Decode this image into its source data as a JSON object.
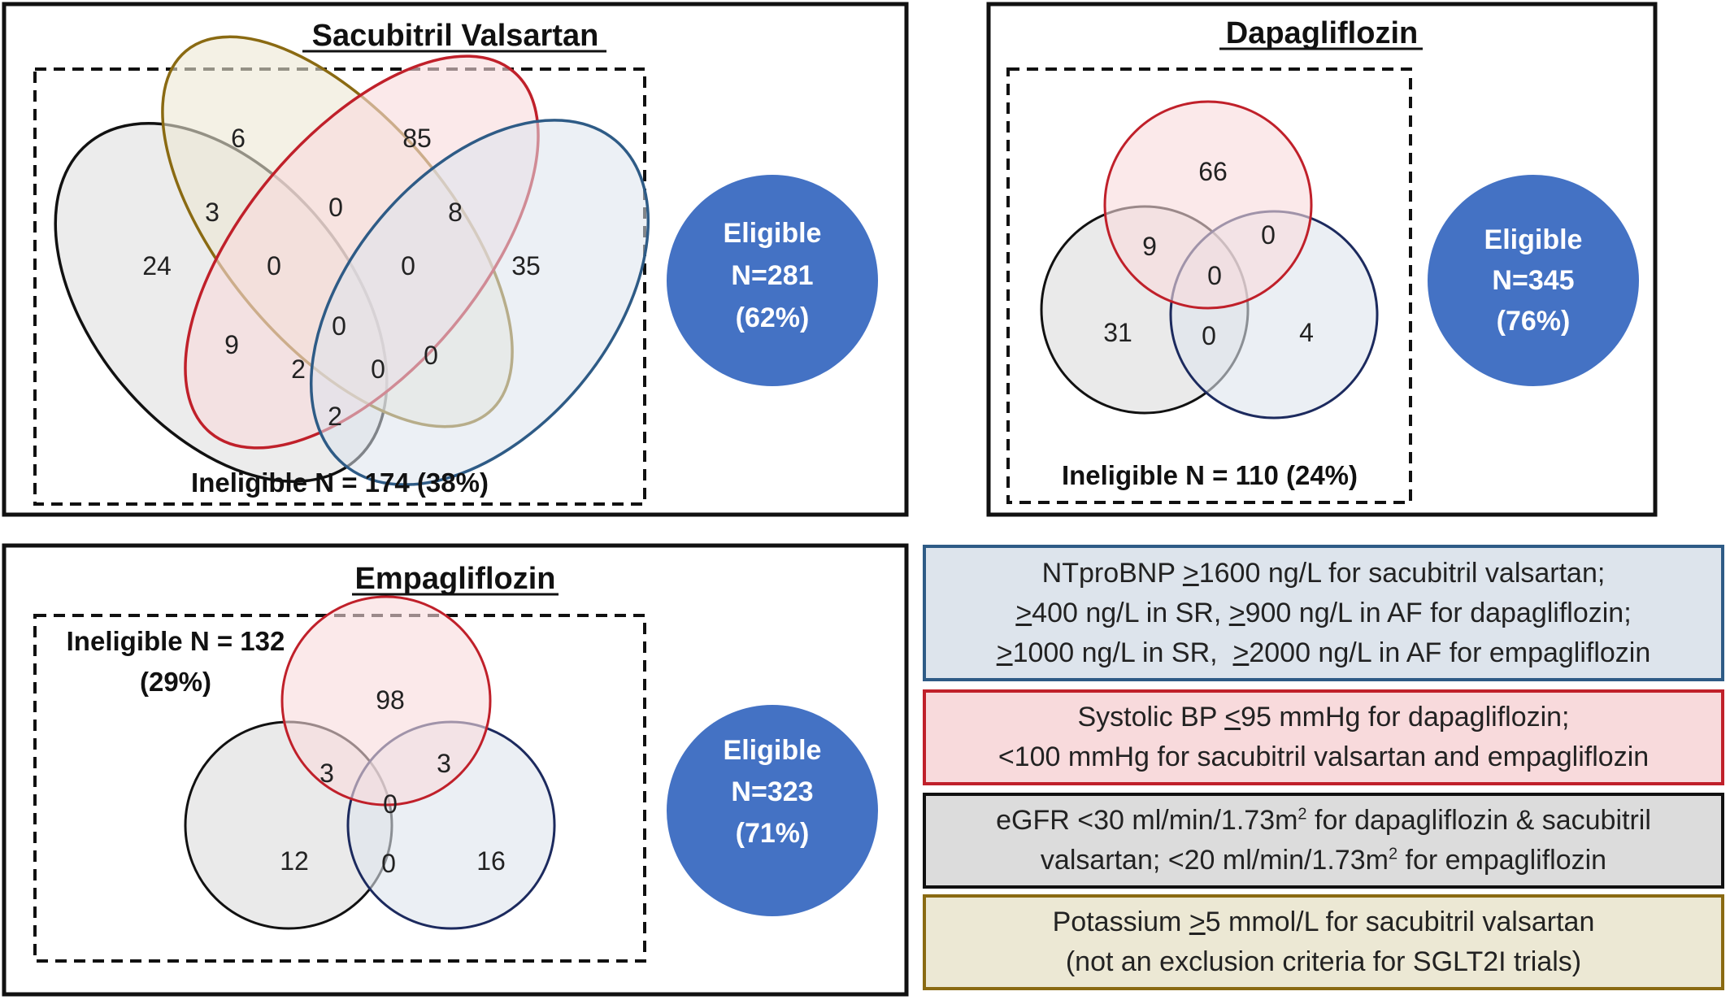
{
  "colors": {
    "blue_edge": "#2e5b86",
    "blue_fill": "#dde4ec",
    "red_edge": "#c0202a",
    "red_fill": "#f8dadc",
    "black_edge": "#111111",
    "grey_fill": "#dcdcdc",
    "olive_edge": "#8a6a12",
    "olive_fill": "#ece8d4",
    "eligible_fill": "#4472c4"
  },
  "panels": {
    "sacubitril": {
      "title": "Sacubitril Valsartan",
      "ineligible": "Ineligible N = 174 (38%)",
      "eligible": [
        "Eligible",
        "N=281",
        "(62%)"
      ],
      "regions": {
        "grey_only": "24",
        "olive_only": "6",
        "red_only": "85",
        "blue_only": "35",
        "grey_olive": "3",
        "olive_red": "0",
        "red_blue": "8",
        "grey_olive_red": "0",
        "olive_red_blue": "0",
        "center": "0",
        "grey_red": "9",
        "grey_red_blue": "2",
        "grey_olive_blue": "0",
        "olive_blue": "0",
        "grey_blue": "2"
      }
    },
    "dapagliflozin": {
      "title": "Dapagliflozin",
      "ineligible": "Ineligible N = 110 (24%)",
      "eligible": [
        "Eligible",
        "N=345",
        "(76%)"
      ],
      "regions": {
        "red_only": "66",
        "grey_red": "9",
        "red_blue": "0",
        "center": "0",
        "grey_only": "31",
        "grey_blue": "0",
        "blue_only": "4"
      }
    },
    "empagliflozin": {
      "title": "Empagliflozin",
      "ineligible_line1": "Ineligible N = 132",
      "ineligible_line2": "(29%)",
      "eligible": [
        "Eligible",
        "N=323",
        "(71%)"
      ],
      "regions": {
        "red_only": "98",
        "grey_red": "3",
        "red_blue": "3",
        "center": "0",
        "grey_only": "12",
        "grey_blue": "0",
        "blue_only": "16"
      }
    }
  },
  "legend": {
    "ntprobnp": {
      "line1_a": "NTproBNP ",
      "line1_u": ">",
      "line1_b": "1600 ng/L for sacubitril valsartan;",
      "line2_u1": ">",
      "line2_a": "400 ng/L in SR, ",
      "line2_u2": ">",
      "line2_b": "900 ng/L in AF for dapagliflozin;",
      "line3_u1": ">",
      "line3_a": "1000 ng/L in SR,  ",
      "line3_u2": ">",
      "line3_b": "2000 ng/L in AF for empagliflozin"
    },
    "systolic": {
      "line1_a": "Systolic BP ",
      "line1_u": "<",
      "line1_b": "95 mmHg for dapagliflozin;",
      "line2": "<100 mmHg for sacubitril valsartan and empagliflozin"
    },
    "egfr": {
      "line1_a": "eGFR <30 ml/min/1.73m",
      "line1_sup": "2",
      "line1_b": " for dapagliflozin & sacubitril",
      "line2_a": "valsartan; <20 ml/min/1.73m",
      "line2_sup": "2",
      "line2_b": " for empagliflozin"
    },
    "potassium": {
      "line1_a": "Potassium ",
      "line1_u": ">",
      "line1_b": "5 mmol/L for sacubitril valsartan",
      "line2": "(not an exclusion criteria for SGLT2I trials)"
    }
  }
}
